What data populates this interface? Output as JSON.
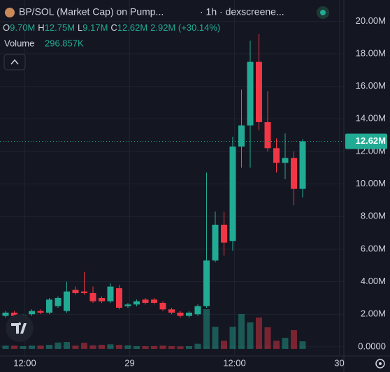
{
  "chart_data": {
    "type": "candlestick",
    "title": "BP/SOL (Market Cap) on Pump...",
    "subtitle": "· 1h · dexscreene...",
    "ohlc_legend": [
      {
        "label": "O",
        "value": "9.70M"
      },
      {
        "label": "H",
        "value": "12.75M"
      },
      {
        "label": "L",
        "value": "9.17M"
      },
      {
        "label": "C",
        "value": "12.62M"
      }
    ],
    "change": "2.92M (+30.14%)",
    "volume_title": "Volume",
    "volume_label": "296.857K",
    "price_tag": "12.62M",
    "up_color": "#22ab94",
    "down_color": "#f23645",
    "grid": true,
    "xlim": [
      -0.64,
      38.72
    ],
    "xticks": [
      {
        "value": 2.2,
        "label": "12:00"
      },
      {
        "value": 14.2,
        "label": "29"
      },
      {
        "value": 26.2,
        "label": "12:00"
      },
      {
        "value": 38.2,
        "label": "30"
      }
    ],
    "ylim": [
      -0.56,
      21.3
    ],
    "yticks": [
      {
        "value": 0,
        "label": "0.0000"
      },
      {
        "value": 2,
        "label": "2.00M"
      },
      {
        "value": 4,
        "label": "4.00M"
      },
      {
        "value": 6,
        "label": "6.00M"
      },
      {
        "value": 8,
        "label": "8.00M"
      },
      {
        "value": 10,
        "label": "10.00M"
      },
      {
        "value": 12,
        "label": "12.00M"
      },
      {
        "value": 14,
        "label": "14.00M"
      },
      {
        "value": 16,
        "label": "16.00M"
      },
      {
        "value": 18,
        "label": "18.00M"
      },
      {
        "value": 20,
        "label": "20.00M"
      }
    ],
    "open": [
      1.9,
      2.1,
      1.9,
      2.0,
      2.2,
      2.1,
      2.5,
      2.2,
      3.5,
      3.4,
      3.3,
      3.0,
      2.8,
      3.6,
      2.5,
      2.6,
      2.9,
      2.9,
      2.7,
      2.3,
      2.1,
      1.9,
      2.0,
      2.5,
      5.3,
      7.5,
      6.5,
      12.3,
      13.6,
      17.5,
      13.8,
      12.2,
      11.3,
      11.6,
      9.7
    ],
    "high": [
      2.2,
      2.2,
      2.0,
      2.3,
      2.3,
      3.0,
      3.1,
      4.0,
      3.7,
      4.6,
      3.7,
      3.1,
      3.9,
      3.8,
      2.7,
      2.9,
      3.0,
      3.0,
      2.8,
      2.4,
      2.2,
      2.2,
      2.6,
      10.7,
      8.3,
      8.3,
      12.9,
      15.8,
      18.8,
      19.2,
      15.7,
      12.8,
      13.1,
      12.0,
      12.75
    ],
    "low": [
      1.8,
      1.8,
      1.8,
      1.9,
      2.0,
      2.0,
      2.4,
      2.1,
      3.2,
      3.2,
      2.7,
      2.7,
      2.7,
      2.3,
      2.4,
      2.5,
      2.6,
      2.6,
      2.2,
      2.0,
      1.8,
      1.8,
      1.9,
      2.4,
      5.2,
      5.6,
      5.9,
      11.0,
      11.0,
      13.3,
      12.0,
      10.7,
      10.3,
      8.7,
      9.17
    ],
    "close": [
      2.1,
      1.9,
      1.95,
      2.2,
      2.1,
      2.9,
      3.0,
      3.4,
      3.3,
      3.3,
      2.8,
      2.8,
      3.7,
      2.4,
      2.6,
      2.8,
      2.7,
      2.7,
      2.3,
      2.1,
      1.9,
      2.1,
      2.5,
      5.3,
      7.5,
      6.4,
      12.3,
      13.6,
      17.5,
      13.8,
      12.2,
      11.3,
      11.6,
      9.7,
      12.62
    ],
    "volumes": [
      130,
      130,
      110,
      130,
      130,
      160,
      250,
      270,
      130,
      240,
      140,
      160,
      180,
      160,
      140,
      110,
      110,
      110,
      130,
      110,
      100,
      110,
      200,
      1540,
      860,
      320,
      860,
      1350,
      1030,
      1220,
      840,
      320,
      430,
      730,
      296.857
    ],
    "vlim": [
      0,
      4000
    ]
  }
}
